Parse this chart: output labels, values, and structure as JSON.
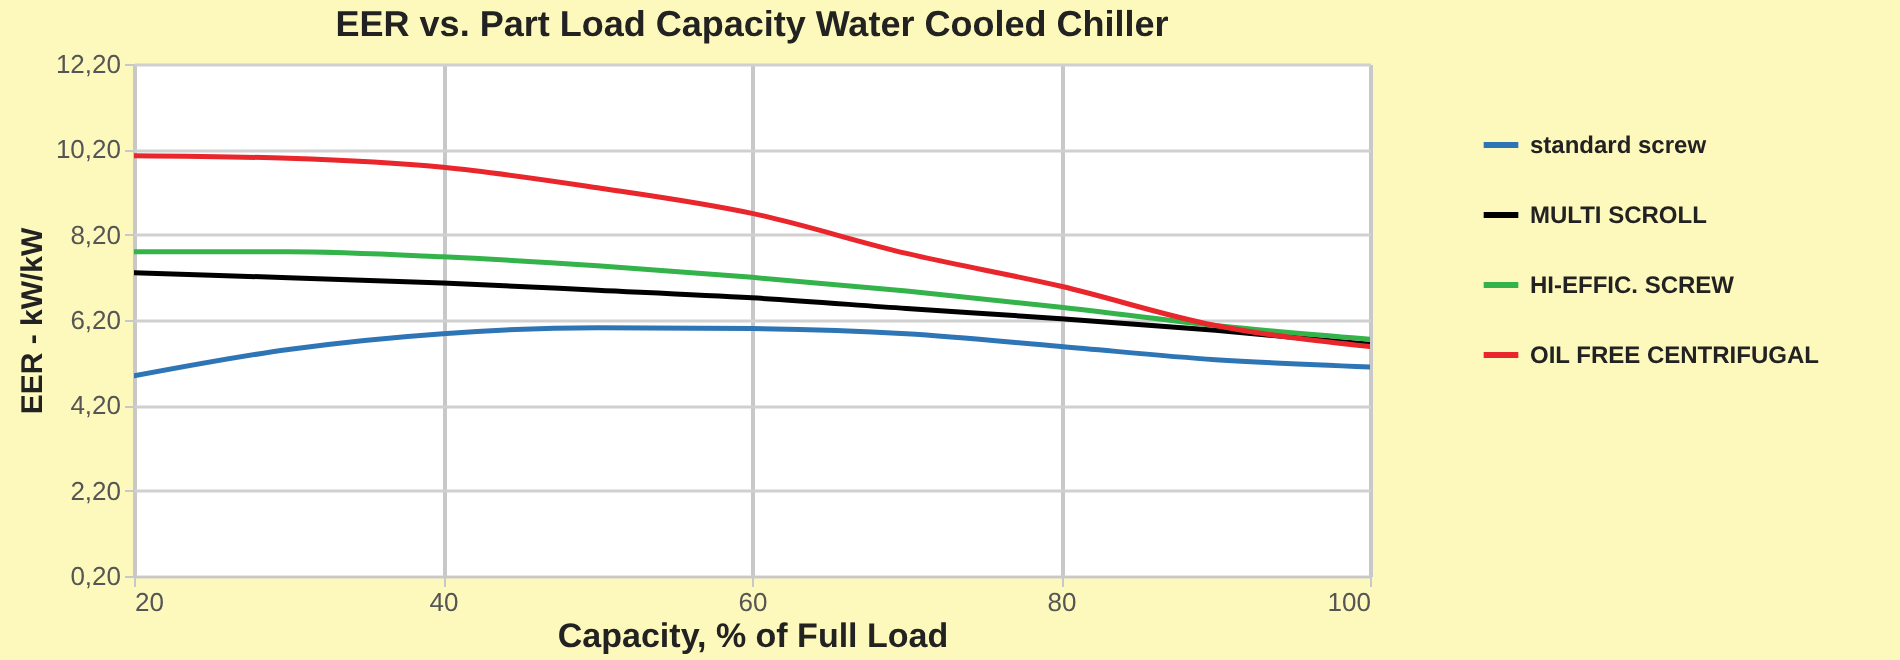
{
  "chart_data": {
    "type": "line",
    "title": "EER vs. Part Load Capacity Water Cooled Chiller",
    "xlabel": "Capacity, % of Full Load",
    "ylabel": "EER - kW/kW",
    "x": [
      20,
      30,
      40,
      50,
      60,
      70,
      80,
      90,
      100
    ],
    "series": [
      {
        "name": "standard screw",
        "color": "#2e75b6",
        "values": [
          4.89,
          5.51,
          5.88,
          6.02,
          6.0,
          5.88,
          5.58,
          5.27,
          5.1
        ]
      },
      {
        "name": "MULTI SCROLL",
        "color": "#000000",
        "values": [
          7.31,
          7.19,
          7.07,
          6.9,
          6.72,
          6.47,
          6.23,
          5.96,
          5.63
        ]
      },
      {
        "name": "HI-EFFIC. SCREW",
        "color": "#33b34a",
        "values": [
          7.8,
          7.8,
          7.68,
          7.47,
          7.2,
          6.88,
          6.5,
          6.07,
          5.75
        ]
      },
      {
        "name": "OIL FREE CENTRIFUGAL",
        "color": "#e8262b",
        "values": [
          10.05,
          9.99,
          9.78,
          9.3,
          8.7,
          7.76,
          6.99,
          6.07,
          5.58
        ]
      }
    ],
    "xlim": [
      20,
      100
    ],
    "xticks": [
      20,
      40,
      60,
      80,
      100
    ],
    "ylim": [
      0.2,
      12.2
    ],
    "yticks": [
      {
        "value": 0.2,
        "label": "0,20"
      },
      {
        "value": 2.2,
        "label": "2,20"
      },
      {
        "value": 4.2,
        "label": "4,20"
      },
      {
        "value": 6.2,
        "label": "6,20"
      },
      {
        "value": 8.2,
        "label": "8,20"
      },
      {
        "value": 10.2,
        "label": "10,20"
      },
      {
        "value": 12.2,
        "label": "12,20"
      }
    ],
    "grid": true,
    "legend": "right",
    "marker": "none",
    "line_style": "solid"
  }
}
